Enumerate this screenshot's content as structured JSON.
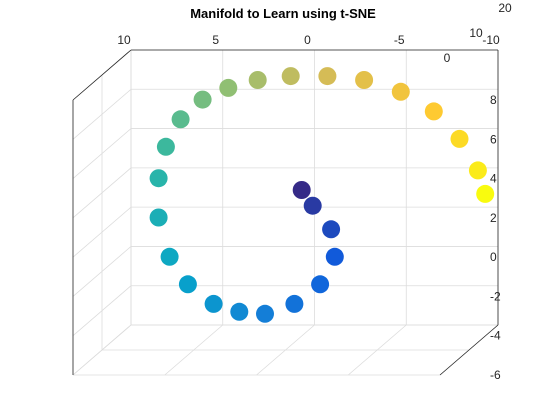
{
  "chart_data": {
    "type": "scatter",
    "title": "Manifold to Learn using t-SNE",
    "projection": "3d",
    "grid": true,
    "colormap": "parula",
    "colormap_stops": [
      "#352a87",
      "#0f5cdd",
      "#1481d6",
      "#06a4ca",
      "#2eb7a4",
      "#87bf77",
      "#d1bb59",
      "#fec832",
      "#f9fb0e"
    ],
    "axes": {
      "x": {
        "ticks": [
          10,
          5,
          0,
          -5,
          -10
        ],
        "lim": [
          -10,
          10
        ]
      },
      "y": {
        "ticks": [
          0,
          10,
          20
        ],
        "lim": [
          0,
          20
        ]
      },
      "z": {
        "ticks": [
          8,
          6,
          4,
          2,
          0,
          -2,
          -4,
          -6
        ],
        "lim": [
          -6,
          8
        ]
      }
    },
    "series": [
      {
        "description": "Swiss-roll manifold: spiral arc colored along its length by the colormap",
        "points": [
          {
            "x": -1.2,
            "y": 8,
            "z": 2.4,
            "t": 0.0
          },
          {
            "x": -1.8,
            "y": 8,
            "z": 1.6,
            "t": 0.04
          },
          {
            "x": -2.8,
            "y": 8,
            "z": 0.4,
            "t": 0.08
          },
          {
            "x": -3.0,
            "y": 8,
            "z": -1.0,
            "t": 0.12
          },
          {
            "x": -2.2,
            "y": 8,
            "z": -2.4,
            "t": 0.16
          },
          {
            "x": -0.8,
            "y": 8,
            "z": -3.4,
            "t": 0.2
          },
          {
            "x": 0.8,
            "y": 8,
            "z": -3.9,
            "t": 0.24
          },
          {
            "x": 2.2,
            "y": 8,
            "z": -3.8,
            "t": 0.28
          },
          {
            "x": 3.6,
            "y": 8,
            "z": -3.4,
            "t": 0.32
          },
          {
            "x": 5.0,
            "y": 8,
            "z": -2.4,
            "t": 0.36
          },
          {
            "x": 6.0,
            "y": 8,
            "z": -1.0,
            "t": 0.4
          },
          {
            "x": 6.6,
            "y": 8,
            "z": 1.0,
            "t": 0.44
          },
          {
            "x": 6.6,
            "y": 8,
            "z": 3.0,
            "t": 0.48
          },
          {
            "x": 6.2,
            "y": 8,
            "z": 4.6,
            "t": 0.52
          },
          {
            "x": 5.4,
            "y": 8,
            "z": 6.0,
            "t": 0.56
          },
          {
            "x": 4.2,
            "y": 8,
            "z": 7.0,
            "t": 0.6
          },
          {
            "x": 2.8,
            "y": 8,
            "z": 7.6,
            "t": 0.64
          },
          {
            "x": 1.2,
            "y": 8,
            "z": 8.0,
            "t": 0.68
          },
          {
            "x": -0.6,
            "y": 8,
            "z": 8.2,
            "t": 0.72
          },
          {
            "x": -2.6,
            "y": 8,
            "z": 8.2,
            "t": 0.76
          },
          {
            "x": -4.6,
            "y": 8,
            "z": 8.0,
            "t": 0.8
          },
          {
            "x": -6.6,
            "y": 8,
            "z": 7.4,
            "t": 0.84
          },
          {
            "x": -8.4,
            "y": 8,
            "z": 6.4,
            "t": 0.88
          },
          {
            "x": -9.8,
            "y": 8,
            "z": 5.0,
            "t": 0.92
          },
          {
            "x": -10.8,
            "y": 8,
            "z": 3.4,
            "t": 0.96
          },
          {
            "x": -11.2,
            "y": 8,
            "z": 2.2,
            "t": 1.0
          }
        ]
      }
    ]
  }
}
